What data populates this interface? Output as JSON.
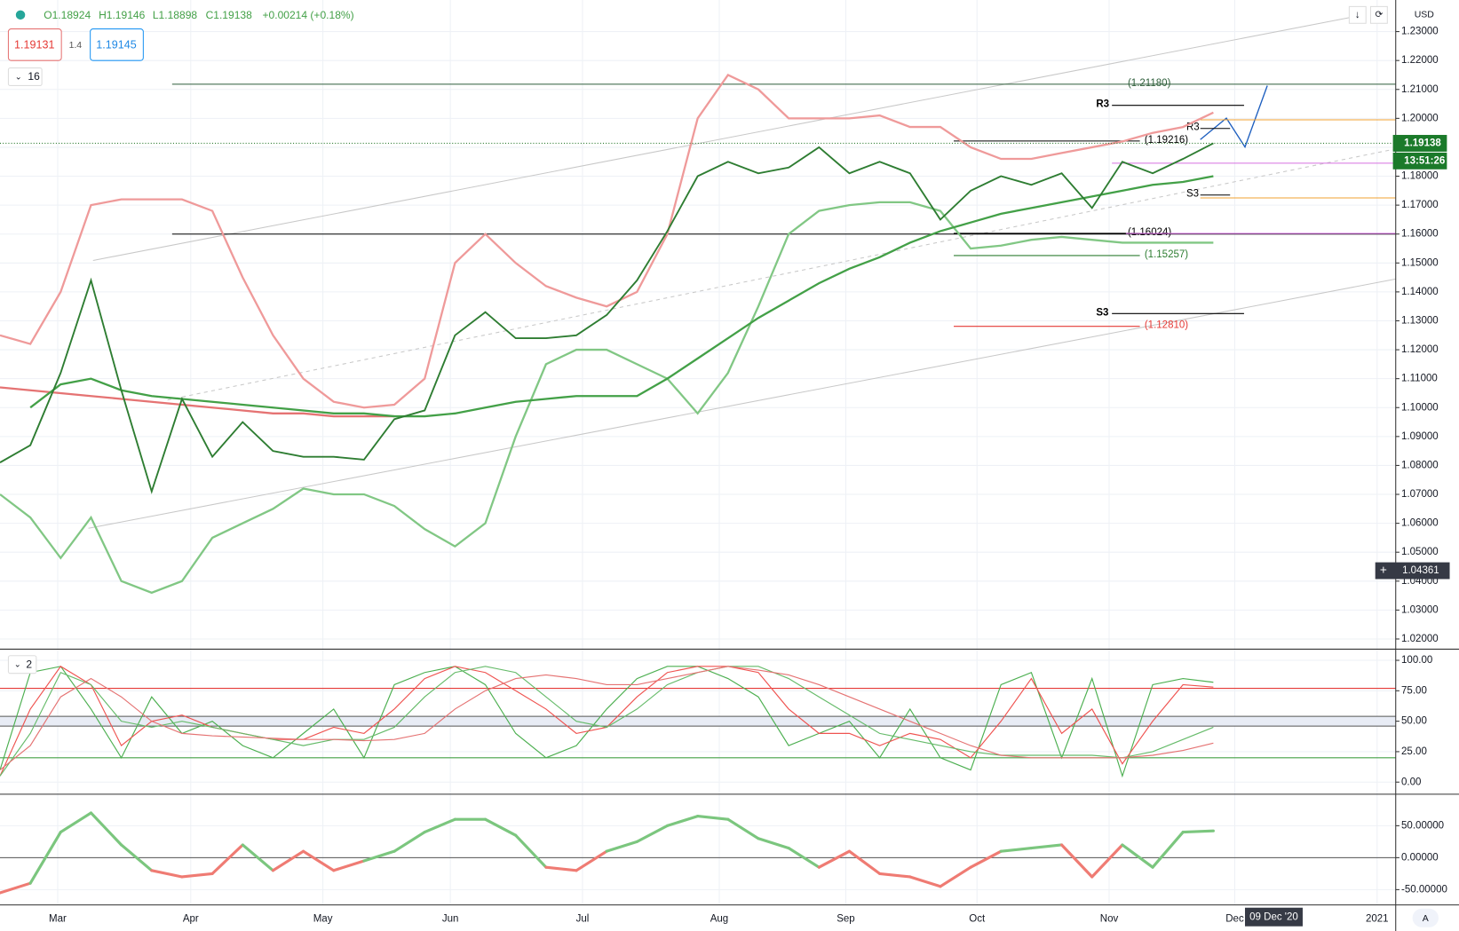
{
  "header": {
    "open": "O1.18924",
    "high": "H1.19146",
    "low": "L1.18898",
    "close": "C1.19138",
    "change": "+0.00214 (+0.18%)",
    "bid": "1.19131",
    "spread": "1.4",
    "ask": "1.19145",
    "indicators_count": "16",
    "oscillator_count": "2",
    "currency": "USD",
    "auto": "A"
  },
  "x_axis": {
    "labels": [
      "Mar",
      "Apr",
      "May",
      "Jun",
      "Jul",
      "Aug",
      "Sep",
      "Oct",
      "Nov",
      "Dec",
      "2021"
    ],
    "crosshair": "09 Dec '20"
  },
  "chart_data": [
    {
      "type": "candlestick-overlay",
      "ylim": [
        1.0168,
        1.2409
      ],
      "yticks": [
        {
          "value": 1.02,
          "label": "1.02000"
        },
        {
          "value": 1.03,
          "label": "1.03000"
        },
        {
          "value": 1.04,
          "label": "1.04000"
        },
        {
          "value": 1.05,
          "label": "1.05000"
        },
        {
          "value": 1.06,
          "label": "1.06000"
        },
        {
          "value": 1.07,
          "label": "1.07000"
        },
        {
          "value": 1.08,
          "label": "1.08000"
        },
        {
          "value": 1.09,
          "label": "1.09000"
        },
        {
          "value": 1.1,
          "label": "1.10000"
        },
        {
          "value": 1.11,
          "label": "1.11000"
        },
        {
          "value": 1.12,
          "label": "1.12000"
        },
        {
          "value": 1.13,
          "label": "1.13000"
        },
        {
          "value": 1.14,
          "label": "1.14000"
        },
        {
          "value": 1.15,
          "label": "1.15000"
        },
        {
          "value": 1.16,
          "label": "1.16000"
        },
        {
          "value": 1.17,
          "label": "1.17000"
        },
        {
          "value": 1.18,
          "label": "1.18000"
        },
        {
          "value": 1.19,
          "label": "1.19000"
        },
        {
          "value": 1.2,
          "label": "1.20000"
        },
        {
          "value": 1.21,
          "label": "1.21000"
        },
        {
          "value": 1.22,
          "label": "1.22000"
        },
        {
          "value": 1.23,
          "label": "1.23000"
        }
      ],
      "grid": true,
      "series": [
        {
          "color": "#ef9a9a",
          "values": [
            1.125,
            1.122,
            1.14,
            1.17,
            1.172,
            1.172,
            1.172,
            1.168,
            1.145,
            1.125,
            1.11,
            1.102,
            1.1,
            1.101,
            1.11,
            1.15,
            1.16,
            1.15,
            1.142,
            1.138,
            1.135,
            1.14,
            1.16,
            1.2,
            1.215,
            1.21,
            1.2,
            1.2,
            1.2,
            1.201,
            1.197,
            1.197,
            1.19,
            1.186,
            1.186,
            1.188,
            1.19,
            1.192,
            1.195,
            1.197,
            1.202
          ]
        },
        {
          "color": "#81c784",
          "values": [
            1.07,
            1.062,
            1.048,
            1.062,
            1.04,
            1.036,
            1.04,
            1.055,
            1.06,
            1.065,
            1.072,
            1.07,
            1.07,
            1.066,
            1.058,
            1.052,
            1.06,
            1.09,
            1.115,
            1.12,
            1.12,
            1.115,
            1.11,
            1.098,
            1.112,
            1.135,
            1.16,
            1.168,
            1.17,
            1.171,
            1.171,
            1.168,
            1.155,
            1.156,
            1.158,
            1.159,
            1.158,
            1.157,
            1.157,
            1.157,
            1.157
          ]
        },
        {
          "color": "#e57373",
          "values": [
            1.107,
            1.106,
            1.105,
            1.104,
            1.103,
            1.102,
            1.101,
            1.1,
            1.099,
            1.098,
            1.098,
            1.097,
            1.097,
            1.097,
            null,
            null,
            null,
            null,
            null,
            null,
            null,
            null,
            null,
            null,
            null,
            null,
            null,
            null,
            null,
            null,
            null,
            null,
            null,
            null,
            null,
            null,
            null,
            null,
            null,
            null,
            null
          ]
        },
        {
          "color": "#43a047",
          "values": [
            null,
            1.1,
            1.108,
            1.11,
            1.106,
            1.104,
            1.103,
            1.102,
            1.101,
            1.1,
            1.099,
            1.098,
            1.098,
            1.097,
            1.097,
            1.098,
            1.1,
            1.102,
            1.103,
            1.104,
            1.104,
            1.104,
            1.11,
            1.117,
            1.124,
            1.131,
            1.137,
            1.143,
            1.148,
            1.152,
            1.157,
            1.161,
            1.164,
            1.167,
            1.169,
            1.171,
            1.173,
            1.175,
            1.177,
            1.178,
            1.18
          ]
        },
        {
          "color": "#2e7d32",
          "values": [
            1.081,
            1.087,
            1.112,
            1.144,
            1.106,
            1.071,
            1.103,
            1.083,
            1.095,
            1.085,
            1.083,
            1.083,
            1.082,
            1.096,
            1.099,
            1.125,
            1.133,
            1.124,
            1.124,
            1.125,
            1.132,
            1.144,
            1.161,
            1.18,
            1.185,
            1.181,
            1.183,
            1.19,
            1.181,
            1.185,
            1.181,
            1.165,
            1.175,
            1.18,
            1.177,
            1.181,
            1.169,
            1.185,
            1.181,
            1.186,
            1.19138
          ]
        }
      ],
      "levels": [
        {
          "value": 1.2118,
          "label": "(1.21180)",
          "color": "#2e5e3a"
        },
        {
          "value": 1.16,
          "color": "#000000"
        },
        {
          "value": 1.19216,
          "label": "(1.19216)",
          "color": "#000000"
        },
        {
          "value": 1.16024,
          "label": "(1.16024)",
          "color": "#000000"
        },
        {
          "value": 1.15257,
          "label": "(1.15257)",
          "color": "#2e7d32"
        },
        {
          "value": 1.1281,
          "label": "(1.12810)",
          "color": "#e53935"
        },
        {
          "value": 1.2045,
          "label": "R3",
          "color": "#000000"
        },
        {
          "value": 1.1325,
          "label": "S3",
          "color": "#000000"
        },
        {
          "value": 1.1965,
          "label": "R3",
          "color": "#000000"
        },
        {
          "value": 1.1735,
          "label": "S3",
          "color": "#000000"
        },
        {
          "value": 1.1995,
          "color": "#f0a030"
        },
        {
          "value": 1.1725,
          "color": "#f0a030"
        },
        {
          "value": 1.1845,
          "color": "#d670e0"
        },
        {
          "value": 1.1602,
          "color": "#d670e0"
        }
      ],
      "last_price": {
        "value": 1.19138,
        "label": "1.19138"
      },
      "countdown": "13:51:26",
      "crosshair": {
        "value": 1.04361,
        "label": "1.04361"
      }
    },
    {
      "type": "line",
      "ylim": [
        -9.2,
        108.4
      ],
      "yticks": [
        {
          "value": 0,
          "label": "0.00"
        },
        {
          "value": 25,
          "label": "25.00"
        },
        {
          "value": 50,
          "label": "50.00"
        },
        {
          "value": 75,
          "label": "75.00"
        },
        {
          "value": 100,
          "label": "100.00"
        }
      ],
      "levels": [
        {
          "value": 77,
          "color": "#e53935"
        },
        {
          "value": 20,
          "color": "#43a047"
        },
        {
          "value": 54,
          "color": "#555555"
        },
        {
          "value": 46,
          "color": "#555555"
        }
      ],
      "series": [
        {
          "color": "#4caf50",
          "values": [
            10,
            90,
            95,
            60,
            20,
            70,
            40,
            50,
            30,
            20,
            40,
            60,
            20,
            80,
            90,
            95,
            80,
            40,
            20,
            30,
            60,
            85,
            95,
            95,
            85,
            70,
            30,
            40,
            50,
            20,
            60,
            20,
            10,
            80,
            90,
            20,
            85,
            5,
            80,
            85,
            82
          ]
        },
        {
          "color": "#ef5350",
          "values": [
            5,
            60,
            95,
            80,
            30,
            50,
            55,
            45,
            40,
            35,
            35,
            45,
            40,
            60,
            85,
            95,
            90,
            75,
            60,
            40,
            45,
            70,
            90,
            95,
            95,
            90,
            60,
            40,
            40,
            30,
            40,
            35,
            20,
            50,
            85,
            40,
            60,
            15,
            50,
            80,
            78
          ]
        },
        {
          "color": "#66bb6a",
          "values": [
            5,
            40,
            90,
            80,
            50,
            45,
            50,
            45,
            40,
            35,
            30,
            35,
            35,
            45,
            70,
            90,
            95,
            90,
            70,
            50,
            45,
            60,
            80,
            90,
            95,
            95,
            85,
            70,
            55,
            40,
            35,
            30,
            25,
            22,
            22,
            22,
            22,
            20,
            25,
            35,
            45
          ]
        },
        {
          "color": "#e57373",
          "values": [
            10,
            30,
            70,
            85,
            70,
            50,
            40,
            38,
            37,
            36,
            35,
            35,
            34,
            35,
            40,
            60,
            75,
            85,
            88,
            85,
            80,
            80,
            85,
            90,
            95,
            92,
            88,
            80,
            70,
            60,
            50,
            40,
            30,
            22,
            20,
            20,
            20,
            20,
            22,
            26,
            32
          ]
        }
      ]
    },
    {
      "type": "signed-line",
      "ylim": [
        -73.9,
        97.8
      ],
      "yticks": [
        {
          "value": 50,
          "label": "50.00000"
        },
        {
          "value": 0,
          "label": "0.00000"
        },
        {
          "value": -50,
          "label": "-50.00000"
        }
      ],
      "colors": {
        "up": "#7bc67e",
        "down": "#ef7b73"
      },
      "values": [
        -55,
        -40,
        40,
        70,
        20,
        -20,
        -30,
        -25,
        20,
        -20,
        10,
        -20,
        -5,
        10,
        40,
        60,
        60,
        35,
        -15,
        -20,
        10,
        25,
        50,
        65,
        60,
        30,
        15,
        -15,
        10,
        -25,
        -30,
        -45,
        -15,
        10,
        15,
        20,
        -30,
        20,
        -15,
        40,
        42
      ]
    }
  ]
}
